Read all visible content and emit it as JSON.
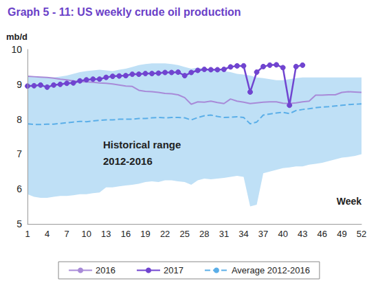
{
  "chart_data": {
    "type": "line",
    "title": "Graph 5 - 11: US weekly crude oil production",
    "y_label": "mb/d",
    "x_label": "Week",
    "categories": [
      1,
      null,
      null,
      4,
      null,
      null,
      7,
      null,
      null,
      10,
      null,
      null,
      13,
      null,
      null,
      16,
      null,
      null,
      19,
      null,
      null,
      22,
      null,
      null,
      25,
      null,
      null,
      28,
      null,
      null,
      31,
      null,
      null,
      34,
      null,
      null,
      37,
      null,
      null,
      40,
      null,
      null,
      43,
      null,
      null,
      46,
      null,
      null,
      49,
      null,
      null,
      52
    ],
    "ylim": [
      5,
      10
    ],
    "yticks": [
      5,
      6,
      7,
      8,
      9,
      10
    ],
    "grid": false,
    "legend": "bottom",
    "band": {
      "label": [
        "Historical range",
        "2012-2016"
      ],
      "color": "#bfe0f6",
      "high": [
        9.23,
        9.22,
        9.21,
        9.2,
        9.2,
        9.22,
        9.25,
        9.3,
        9.35,
        9.38,
        9.4,
        9.42,
        9.4,
        9.38,
        9.42,
        9.45,
        9.5,
        9.55,
        9.58,
        9.6,
        9.6,
        9.6,
        9.58,
        9.55,
        9.5,
        9.45,
        9.48,
        9.45,
        9.42,
        9.4,
        9.38,
        9.35,
        9.3,
        9.28,
        9.25,
        9.2,
        9.18,
        9.15,
        9.12,
        9.12,
        9.15,
        9.18,
        9.2,
        9.2,
        9.2,
        9.2,
        9.2,
        9.2,
        9.2,
        9.2,
        9.2,
        9.2
      ],
      "low": [
        5.85,
        5.78,
        5.75,
        5.75,
        5.78,
        5.8,
        5.8,
        5.82,
        5.85,
        5.85,
        5.88,
        5.9,
        6.05,
        6.05,
        6.08,
        6.1,
        6.12,
        6.15,
        6.2,
        6.22,
        6.2,
        6.25,
        6.25,
        6.22,
        6.2,
        6.12,
        6.25,
        6.3,
        6.28,
        6.3,
        6.32,
        6.35,
        6.38,
        6.35,
        5.5,
        5.55,
        6.45,
        6.5,
        6.55,
        6.6,
        6.62,
        6.65,
        6.65,
        6.7,
        6.72,
        6.75,
        6.8,
        6.85,
        6.9,
        6.92,
        6.95,
        7.0
      ]
    },
    "series": [
      {
        "name": "2016",
        "color": "#a88ad8",
        "marker": "none",
        "line_style": "solid",
        "values": [
          9.23,
          9.22,
          9.21,
          9.2,
          9.18,
          9.15,
          9.13,
          9.1,
          9.08,
          9.07,
          9.06,
          9.04,
          9.03,
          9.01,
          8.98,
          8.95,
          8.94,
          8.83,
          8.8,
          8.79,
          8.77,
          8.74,
          8.73,
          8.7,
          8.62,
          8.43,
          8.5,
          8.49,
          8.52,
          8.48,
          8.45,
          8.58,
          8.52,
          8.49,
          8.45,
          8.47,
          8.49,
          8.5,
          8.5,
          8.46,
          8.45,
          8.47,
          8.5,
          8.52,
          8.69,
          8.69,
          8.7,
          8.7,
          8.77,
          8.79,
          8.78,
          8.77
        ]
      },
      {
        "name": "2017",
        "color": "#7044d0",
        "marker": "circle",
        "line_style": "solid",
        "values": [
          8.95,
          8.96,
          8.98,
          8.92,
          8.98,
          9.0,
          9.03,
          9.04,
          9.1,
          9.13,
          9.15,
          9.15,
          9.2,
          9.23,
          9.24,
          9.25,
          9.29,
          9.29,
          9.31,
          9.31,
          9.32,
          9.34,
          9.34,
          9.35,
          9.25,
          9.34,
          9.4,
          9.43,
          9.42,
          9.42,
          9.43,
          9.5,
          9.53,
          9.53,
          8.78,
          9.35,
          9.51,
          9.55,
          9.56,
          9.48,
          8.4,
          9.51,
          9.55,
          null,
          null,
          null,
          null,
          null,
          null,
          null,
          null,
          null
        ]
      },
      {
        "name": "Average 2012-2016",
        "color": "#5aaee8",
        "marker": "none",
        "line_style": "dashed",
        "values": [
          7.87,
          7.85,
          7.85,
          7.86,
          7.86,
          7.88,
          7.9,
          7.92,
          7.94,
          7.93,
          7.95,
          7.97,
          7.98,
          7.98,
          8.0,
          8.0,
          8.0,
          8.02,
          8.02,
          8.04,
          8.05,
          8.04,
          8.05,
          8.05,
          8.04,
          7.98,
          8.05,
          8.1,
          8.12,
          8.08,
          8.05,
          8.06,
          8.07,
          8.05,
          7.87,
          7.92,
          8.12,
          8.15,
          8.18,
          8.2,
          8.16,
          8.25,
          8.28,
          8.3,
          8.33,
          8.35,
          8.36,
          8.38,
          8.4,
          8.42,
          8.43,
          8.44
        ]
      }
    ]
  }
}
